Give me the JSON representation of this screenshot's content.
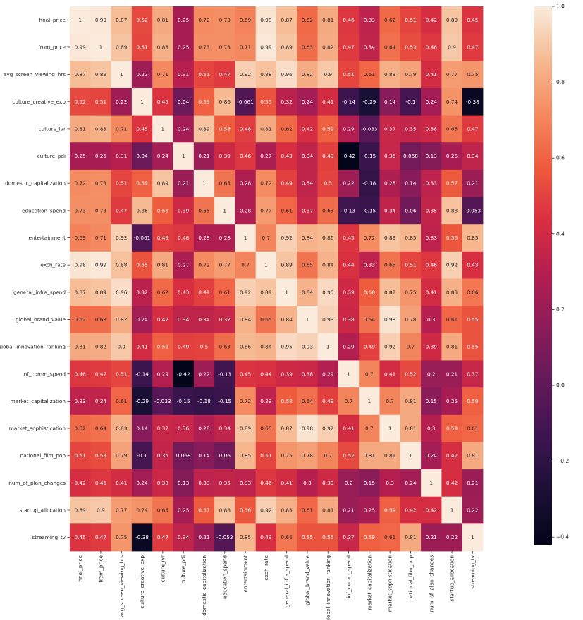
{
  "chart_data": {
    "type": "heatmap",
    "title": "",
    "xlabel": "",
    "ylabel": "",
    "variables": [
      "final_price",
      "from_price",
      "avg_screen_viewing_hrs",
      "culture_creative_exp",
      "culture_ivr",
      "culture_pdi",
      "domestic_capitalization",
      "education_spend",
      "entertainment",
      "exch_rate",
      "general_infra_spend",
      "global_brand_value",
      "global_innovation_ranking",
      "inf_comm_spend",
      "market_capitalization",
      "market_sophistication",
      "national_film_pop",
      "num_of_plan_changes",
      "startup_allocation",
      "streaming_tv"
    ],
    "matrix": [
      [
        "1",
        "0.99",
        "0.87",
        "0.52",
        "0.81",
        "0.25",
        "0.72",
        "0.73",
        "0.69",
        "0.98",
        "0.87",
        "0.62",
        "0.81",
        "0.46",
        "0.33",
        "0.62",
        "0.51",
        "0.42",
        "0.89",
        "0.45"
      ],
      [
        "0.99",
        "1",
        "0.89",
        "0.51",
        "0.83",
        "0.25",
        "0.73",
        "0.73",
        "0.71",
        "0.99",
        "0.89",
        "0.63",
        "0.82",
        "0.47",
        "0.34",
        "0.64",
        "0.53",
        "0.46",
        "0.9",
        "0.47"
      ],
      [
        "0.87",
        "0.89",
        "1",
        "0.22",
        "0.71",
        "0.31",
        "0.51",
        "0.47",
        "0.92",
        "0.88",
        "0.96",
        "0.82",
        "0.9",
        "0.51",
        "0.61",
        "0.83",
        "0.79",
        "0.41",
        "0.77",
        "0.75"
      ],
      [
        "0.52",
        "0.51",
        "0.22",
        "1",
        "0.45",
        "0.04",
        "0.59",
        "0.86",
        "-0.061",
        "0.55",
        "0.32",
        "0.24",
        "0.41",
        "-0.14",
        "-0.29",
        "0.14",
        "-0.1",
        "0.24",
        "0.74",
        "-0.38"
      ],
      [
        "0.81",
        "0.83",
        "0.71",
        "0.45",
        "1",
        "0.24",
        "0.89",
        "0.58",
        "0.48",
        "0.81",
        "0.62",
        "0.42",
        "0.59",
        "0.29",
        "-0.033",
        "0.37",
        "0.35",
        "0.38",
        "0.65",
        "0.47"
      ],
      [
        "0.25",
        "0.25",
        "0.31",
        "0.04",
        "0.24",
        "1",
        "0.21",
        "0.39",
        "0.46",
        "0.27",
        "0.43",
        "0.34",
        "0.49",
        "-0.42",
        "-0.15",
        "0.36",
        "0.068",
        "0.13",
        "0.25",
        "0.34"
      ],
      [
        "0.72",
        "0.73",
        "0.51",
        "0.59",
        "0.89",
        "0.21",
        "1",
        "0.65",
        "0.28",
        "0.72",
        "0.49",
        "0.34",
        "0.5",
        "0.22",
        "-0.18",
        "0.28",
        "0.14",
        "0.33",
        "0.57",
        "0.21"
      ],
      [
        "0.73",
        "0.73",
        "0.47",
        "0.86",
        "0.58",
        "0.39",
        "0.65",
        "1",
        "0.28",
        "0.77",
        "0.61",
        "0.37",
        "0.63",
        "-0.13",
        "-0.15",
        "0.34",
        "0.06",
        "0.35",
        "0.88",
        "-0.053"
      ],
      [
        "0.69",
        "0.71",
        "0.92",
        "-0.061",
        "0.48",
        "0.46",
        "0.28",
        "0.28",
        "1",
        "0.7",
        "0.92",
        "0.84",
        "0.86",
        "0.45",
        "0.72",
        "0.89",
        "0.85",
        "0.33",
        "0.56",
        "0.85"
      ],
      [
        "0.98",
        "0.99",
        "0.88",
        "0.55",
        "0.81",
        "0.27",
        "0.72",
        "0.77",
        "0.7",
        "1",
        "0.89",
        "0.65",
        "0.84",
        "0.44",
        "0.33",
        "0.65",
        "0.51",
        "0.46",
        "0.92",
        "0.43"
      ],
      [
        "0.87",
        "0.89",
        "0.96",
        "0.32",
        "0.62",
        "0.43",
        "0.49",
        "0.61",
        "0.92",
        "0.89",
        "1",
        "0.84",
        "0.95",
        "0.39",
        "0.58",
        "0.87",
        "0.75",
        "0.41",
        "0.83",
        "0.66"
      ],
      [
        "0.62",
        "0.63",
        "0.82",
        "0.24",
        "0.42",
        "0.34",
        "0.34",
        "0.37",
        "0.84",
        "0.65",
        "0.84",
        "1",
        "0.93",
        "0.38",
        "0.64",
        "0.98",
        "0.78",
        "0.3",
        "0.61",
        "0.55"
      ],
      [
        "0.81",
        "0.82",
        "0.9",
        "0.41",
        "0.59",
        "0.49",
        "0.5",
        "0.63",
        "0.86",
        "0.84",
        "0.95",
        "0.93",
        "1",
        "0.29",
        "0.49",
        "0.92",
        "0.7",
        "0.39",
        "0.81",
        "0.55"
      ],
      [
        "0.46",
        "0.47",
        "0.51",
        "-0.14",
        "0.29",
        "-0.42",
        "0.22",
        "-0.13",
        "0.45",
        "0.44",
        "0.39",
        "0.38",
        "0.29",
        "1",
        "0.7",
        "0.41",
        "0.52",
        "0.2",
        "0.21",
        "0.37"
      ],
      [
        "0.33",
        "0.34",
        "0.61",
        "-0.29",
        "-0.033",
        "-0.15",
        "-0.18",
        "-0.15",
        "0.72",
        "0.33",
        "0.58",
        "0.64",
        "0.49",
        "0.7",
        "1",
        "0.7",
        "0.81",
        "0.15",
        "0.25",
        "0.59"
      ],
      [
        "0.62",
        "0.64",
        "0.83",
        "0.14",
        "0.37",
        "0.36",
        "0.28",
        "0.34",
        "0.89",
        "0.65",
        "0.87",
        "0.98",
        "0.92",
        "0.41",
        "0.7",
        "1",
        "0.81",
        "0.3",
        "0.59",
        "0.61"
      ],
      [
        "0.51",
        "0.53",
        "0.79",
        "-0.1",
        "0.35",
        "0.068",
        "0.14",
        "0.06",
        "0.85",
        "0.51",
        "0.75",
        "0.78",
        "0.7",
        "0.52",
        "0.81",
        "0.81",
        "1",
        "0.24",
        "0.42",
        "0.81"
      ],
      [
        "0.42",
        "0.46",
        "0.41",
        "0.24",
        "0.38",
        "0.13",
        "0.33",
        "0.35",
        "0.33",
        "0.46",
        "0.41",
        "0.3",
        "0.39",
        "0.2",
        "0.15",
        "0.3",
        "0.24",
        "1",
        "0.42",
        "0.21"
      ],
      [
        "0.89",
        "0.9",
        "0.77",
        "0.74",
        "0.65",
        "0.25",
        "0.57",
        "0.88",
        "0.56",
        "0.92",
        "0.83",
        "0.61",
        "0.81",
        "0.21",
        "0.25",
        "0.59",
        "0.42",
        "0.42",
        "1",
        "0.22"
      ],
      [
        "0.45",
        "0.47",
        "0.75",
        "-0.38",
        "0.47",
        "0.34",
        "0.21",
        "-0.053",
        "0.85",
        "0.43",
        "0.66",
        "0.55",
        "0.55",
        "0.37",
        "0.59",
        "0.61",
        "0.81",
        "0.21",
        "0.22",
        "1"
      ]
    ],
    "colorbar": {
      "min": -0.42,
      "max": 1.0,
      "ticks": [
        "1.0",
        "0.8",
        "0.6",
        "0.4",
        "0.2",
        "0.0",
        "−0.2",
        "−0.4"
      ],
      "colormap": "rocket"
    }
  }
}
